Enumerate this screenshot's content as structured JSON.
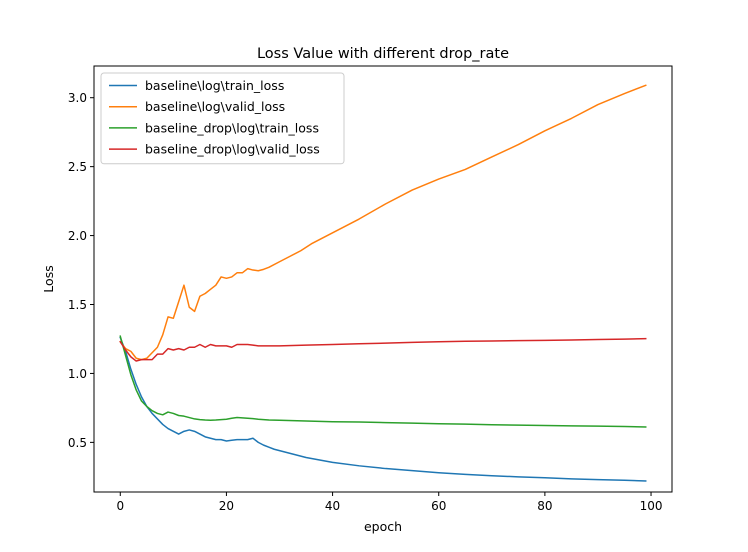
{
  "chart_data": {
    "type": "line",
    "title": "Loss Value with different drop_rate",
    "xlabel": "epoch",
    "ylabel": "Loss",
    "xlim": [
      -4.95,
      103.95
    ],
    "ylim": [
      0.14,
      3.23
    ],
    "xticks": [
      0,
      20,
      40,
      60,
      80,
      100
    ],
    "yticks": [
      0.5,
      1.0,
      1.5,
      2.0,
      2.5,
      3.0
    ],
    "xtick_labels": [
      "0",
      "20",
      "40",
      "60",
      "80",
      "100"
    ],
    "ytick_labels": [
      "0.5",
      "1.0",
      "1.5",
      "2.0",
      "2.5",
      "3.0"
    ],
    "grid": false,
    "legend_position": "top-left",
    "series": [
      {
        "name": "baseline\\log\\train_loss",
        "color": "#1f77b4",
        "x": [
          0,
          1,
          2,
          3,
          4,
          5,
          6,
          7,
          8,
          9,
          10,
          11,
          12,
          13,
          14,
          15,
          16,
          17,
          18,
          19,
          20,
          21,
          22,
          23,
          24,
          25,
          26,
          27,
          28,
          29,
          30,
          35,
          40,
          45,
          50,
          55,
          60,
          65,
          70,
          75,
          80,
          85,
          90,
          95,
          99
        ],
        "y": [
          1.26,
          1.16,
          1.03,
          0.92,
          0.83,
          0.76,
          0.71,
          0.67,
          0.63,
          0.6,
          0.58,
          0.56,
          0.58,
          0.59,
          0.58,
          0.56,
          0.54,
          0.53,
          0.52,
          0.52,
          0.51,
          0.515,
          0.52,
          0.52,
          0.52,
          0.53,
          0.5,
          0.48,
          0.465,
          0.45,
          0.44,
          0.39,
          0.355,
          0.33,
          0.31,
          0.295,
          0.28,
          0.268,
          0.258,
          0.25,
          0.243,
          0.235,
          0.23,
          0.225,
          0.22
        ]
      },
      {
        "name": "baseline\\log\\valid_loss",
        "color": "#ff7f0e",
        "x": [
          0,
          1,
          2,
          3,
          4,
          5,
          6,
          7,
          8,
          9,
          10,
          11,
          12,
          13,
          14,
          15,
          16,
          17,
          18,
          19,
          20,
          21,
          22,
          23,
          24,
          25,
          26,
          27,
          28,
          30,
          32,
          34,
          36,
          38,
          40,
          45,
          50,
          55,
          60,
          65,
          70,
          75,
          80,
          85,
          90,
          95,
          99
        ],
        "y": [
          1.23,
          1.18,
          1.16,
          1.11,
          1.1,
          1.11,
          1.15,
          1.19,
          1.28,
          1.41,
          1.4,
          1.52,
          1.64,
          1.48,
          1.45,
          1.56,
          1.58,
          1.61,
          1.64,
          1.7,
          1.69,
          1.7,
          1.73,
          1.73,
          1.76,
          1.75,
          1.745,
          1.755,
          1.77,
          1.81,
          1.85,
          1.89,
          1.94,
          1.98,
          2.02,
          2.12,
          2.23,
          2.33,
          2.41,
          2.48,
          2.57,
          2.66,
          2.76,
          2.85,
          2.95,
          3.03,
          3.09
        ]
      },
      {
        "name": "baseline_drop\\log\\train_loss",
        "color": "#2ca02c",
        "x": [
          0,
          1,
          2,
          3,
          4,
          5,
          6,
          7,
          8,
          9,
          10,
          11,
          12,
          13,
          14,
          15,
          16,
          17,
          18,
          19,
          20,
          21,
          22,
          23,
          24,
          25,
          26,
          27,
          28,
          30,
          35,
          40,
          45,
          50,
          55,
          60,
          65,
          70,
          75,
          80,
          85,
          90,
          95,
          99
        ],
        "y": [
          1.27,
          1.13,
          0.99,
          0.88,
          0.8,
          0.76,
          0.73,
          0.71,
          0.7,
          0.72,
          0.71,
          0.695,
          0.69,
          0.68,
          0.67,
          0.665,
          0.662,
          0.66,
          0.662,
          0.665,
          0.668,
          0.675,
          0.68,
          0.678,
          0.675,
          0.672,
          0.668,
          0.665,
          0.662,
          0.66,
          0.655,
          0.65,
          0.648,
          0.643,
          0.64,
          0.635,
          0.632,
          0.628,
          0.625,
          0.622,
          0.62,
          0.618,
          0.615,
          0.612
        ]
      },
      {
        "name": "baseline_drop\\log\\valid_loss",
        "color": "#d62728",
        "x": [
          0,
          1,
          2,
          3,
          4,
          5,
          6,
          7,
          8,
          9,
          10,
          11,
          12,
          13,
          14,
          15,
          16,
          17,
          18,
          19,
          20,
          21,
          22,
          23,
          24,
          25,
          26,
          27,
          28,
          30,
          35,
          40,
          45,
          50,
          55,
          60,
          65,
          70,
          75,
          80,
          85,
          90,
          95,
          99
        ],
        "y": [
          1.23,
          1.17,
          1.12,
          1.09,
          1.1,
          1.1,
          1.1,
          1.14,
          1.14,
          1.18,
          1.17,
          1.18,
          1.17,
          1.19,
          1.19,
          1.21,
          1.19,
          1.21,
          1.2,
          1.2,
          1.2,
          1.19,
          1.21,
          1.21,
          1.21,
          1.205,
          1.2,
          1.2,
          1.2,
          1.2,
          1.205,
          1.21,
          1.215,
          1.22,
          1.225,
          1.23,
          1.233,
          1.235,
          1.238,
          1.24,
          1.243,
          1.246,
          1.249,
          1.252
        ]
      }
    ]
  }
}
